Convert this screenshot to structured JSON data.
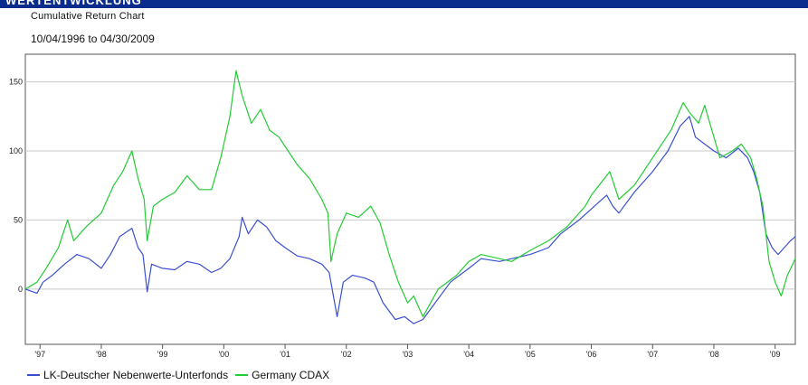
{
  "header": {
    "banner_text": "WERTENTWICKLUNG"
  },
  "chart_data": {
    "type": "line",
    "title": "Cumulative Return Chart",
    "subtitle": "10/04/1996 to 04/30/2009",
    "xlabel": "",
    "ylabel": "",
    "xlim": [
      1996.76,
      2009.33
    ],
    "ylim": [
      -40,
      170
    ],
    "grid": true,
    "legend": "bottom",
    "y_ticks": [
      0,
      50,
      100,
      150
    ],
    "x_ticks": [
      {
        "label": "'97",
        "x": 1997.0
      },
      {
        "label": "'98",
        "x": 1998.0
      },
      {
        "label": "'99",
        "x": 1999.0
      },
      {
        "label": "'00",
        "x": 2000.0
      },
      {
        "label": "'01",
        "x": 2001.0
      },
      {
        "label": "'02",
        "x": 2002.0
      },
      {
        "label": "'03",
        "x": 2003.0
      },
      {
        "label": "'04",
        "x": 2004.0
      },
      {
        "label": "'05",
        "x": 2005.0
      },
      {
        "label": "'06",
        "x": 2006.0
      },
      {
        "label": "'07",
        "x": 2007.0
      },
      {
        "label": "'08",
        "x": 2008.0
      },
      {
        "label": "'09",
        "x": 2009.0
      }
    ],
    "series": [
      {
        "name": "LK-Deutscher Nebenwerte-Unterfonds",
        "color": "#3a4fd0",
        "points": [
          [
            1996.76,
            0
          ],
          [
            1996.95,
            -3
          ],
          [
            1997.05,
            5
          ],
          [
            1997.2,
            10
          ],
          [
            1997.4,
            18
          ],
          [
            1997.6,
            25
          ],
          [
            1997.8,
            22
          ],
          [
            1998.0,
            15
          ],
          [
            1998.15,
            25
          ],
          [
            1998.3,
            38
          ],
          [
            1998.5,
            44
          ],
          [
            1998.6,
            30
          ],
          [
            1998.68,
            25
          ],
          [
            1998.75,
            -2
          ],
          [
            1998.82,
            18
          ],
          [
            1999.0,
            15
          ],
          [
            1999.2,
            14
          ],
          [
            1999.4,
            20
          ],
          [
            1999.6,
            18
          ],
          [
            1999.8,
            12
          ],
          [
            1999.95,
            15
          ],
          [
            2000.1,
            22
          ],
          [
            2000.25,
            38
          ],
          [
            2000.3,
            52
          ],
          [
            2000.4,
            40
          ],
          [
            2000.55,
            50
          ],
          [
            2000.7,
            45
          ],
          [
            2000.85,
            35
          ],
          [
            2001.0,
            30
          ],
          [
            2001.2,
            24
          ],
          [
            2001.4,
            22
          ],
          [
            2001.6,
            18
          ],
          [
            2001.72,
            12
          ],
          [
            2001.85,
            -20
          ],
          [
            2001.95,
            5
          ],
          [
            2002.1,
            10
          ],
          [
            2002.3,
            8
          ],
          [
            2002.45,
            5
          ],
          [
            2002.6,
            -10
          ],
          [
            2002.8,
            -22
          ],
          [
            2002.95,
            -20
          ],
          [
            2003.1,
            -25
          ],
          [
            2003.25,
            -22
          ],
          [
            2003.45,
            -10
          ],
          [
            2003.7,
            5
          ],
          [
            2004.0,
            15
          ],
          [
            2004.2,
            22
          ],
          [
            2004.5,
            20
          ],
          [
            2004.7,
            22
          ],
          [
            2005.0,
            25
          ],
          [
            2005.3,
            30
          ],
          [
            2005.5,
            40
          ],
          [
            2005.8,
            50
          ],
          [
            2006.0,
            58
          ],
          [
            2006.25,
            68
          ],
          [
            2006.35,
            60
          ],
          [
            2006.45,
            55
          ],
          [
            2006.7,
            70
          ],
          [
            2007.0,
            85
          ],
          [
            2007.25,
            100
          ],
          [
            2007.45,
            118
          ],
          [
            2007.6,
            125
          ],
          [
            2007.7,
            110
          ],
          [
            2007.85,
            105
          ],
          [
            2008.0,
            100
          ],
          [
            2008.2,
            95
          ],
          [
            2008.4,
            102
          ],
          [
            2008.55,
            95
          ],
          [
            2008.65,
            85
          ],
          [
            2008.75,
            70
          ],
          [
            2008.85,
            40
          ],
          [
            2008.95,
            30
          ],
          [
            2009.05,
            25
          ],
          [
            2009.15,
            30
          ],
          [
            2009.25,
            35
          ],
          [
            2009.33,
            38
          ]
        ]
      },
      {
        "name": "Germany CDAX",
        "color": "#22cc33",
        "points": [
          [
            1996.76,
            0
          ],
          [
            1996.95,
            5
          ],
          [
            1997.1,
            15
          ],
          [
            1997.3,
            30
          ],
          [
            1997.45,
            50
          ],
          [
            1997.55,
            35
          ],
          [
            1997.75,
            45
          ],
          [
            1998.0,
            55
          ],
          [
            1998.2,
            75
          ],
          [
            1998.35,
            85
          ],
          [
            1998.5,
            100
          ],
          [
            1998.6,
            80
          ],
          [
            1998.7,
            65
          ],
          [
            1998.75,
            35
          ],
          [
            1998.85,
            60
          ],
          [
            1999.0,
            65
          ],
          [
            1999.2,
            70
          ],
          [
            1999.4,
            82
          ],
          [
            1999.6,
            72
          ],
          [
            1999.8,
            72
          ],
          [
            1999.95,
            95
          ],
          [
            2000.1,
            125
          ],
          [
            2000.2,
            158
          ],
          [
            2000.3,
            140
          ],
          [
            2000.45,
            120
          ],
          [
            2000.6,
            130
          ],
          [
            2000.75,
            115
          ],
          [
            2000.9,
            110
          ],
          [
            2001.05,
            100
          ],
          [
            2001.2,
            90
          ],
          [
            2001.4,
            80
          ],
          [
            2001.6,
            65
          ],
          [
            2001.7,
            55
          ],
          [
            2001.75,
            20
          ],
          [
            2001.85,
            40
          ],
          [
            2002.0,
            55
          ],
          [
            2002.2,
            52
          ],
          [
            2002.4,
            60
          ],
          [
            2002.55,
            48
          ],
          [
            2002.7,
            25
          ],
          [
            2002.85,
            5
          ],
          [
            2003.0,
            -10
          ],
          [
            2003.1,
            -5
          ],
          [
            2003.25,
            -20
          ],
          [
            2003.5,
            0
          ],
          [
            2003.8,
            10
          ],
          [
            2004.0,
            20
          ],
          [
            2004.2,
            25
          ],
          [
            2004.5,
            22
          ],
          [
            2004.7,
            20
          ],
          [
            2005.0,
            28
          ],
          [
            2005.3,
            35
          ],
          [
            2005.6,
            45
          ],
          [
            2005.9,
            60
          ],
          [
            2006.0,
            68
          ],
          [
            2006.3,
            85
          ],
          [
            2006.45,
            65
          ],
          [
            2006.7,
            75
          ],
          [
            2007.0,
            95
          ],
          [
            2007.3,
            115
          ],
          [
            2007.5,
            135
          ],
          [
            2007.6,
            128
          ],
          [
            2007.75,
            120
          ],
          [
            2007.85,
            133
          ],
          [
            2008.0,
            110
          ],
          [
            2008.1,
            95
          ],
          [
            2008.3,
            100
          ],
          [
            2008.45,
            105
          ],
          [
            2008.6,
            95
          ],
          [
            2008.7,
            80
          ],
          [
            2008.8,
            60
          ],
          [
            2008.9,
            20
          ],
          [
            2009.0,
            5
          ],
          [
            2009.1,
            -5
          ],
          [
            2009.2,
            10
          ],
          [
            2009.33,
            22
          ]
        ]
      }
    ]
  }
}
